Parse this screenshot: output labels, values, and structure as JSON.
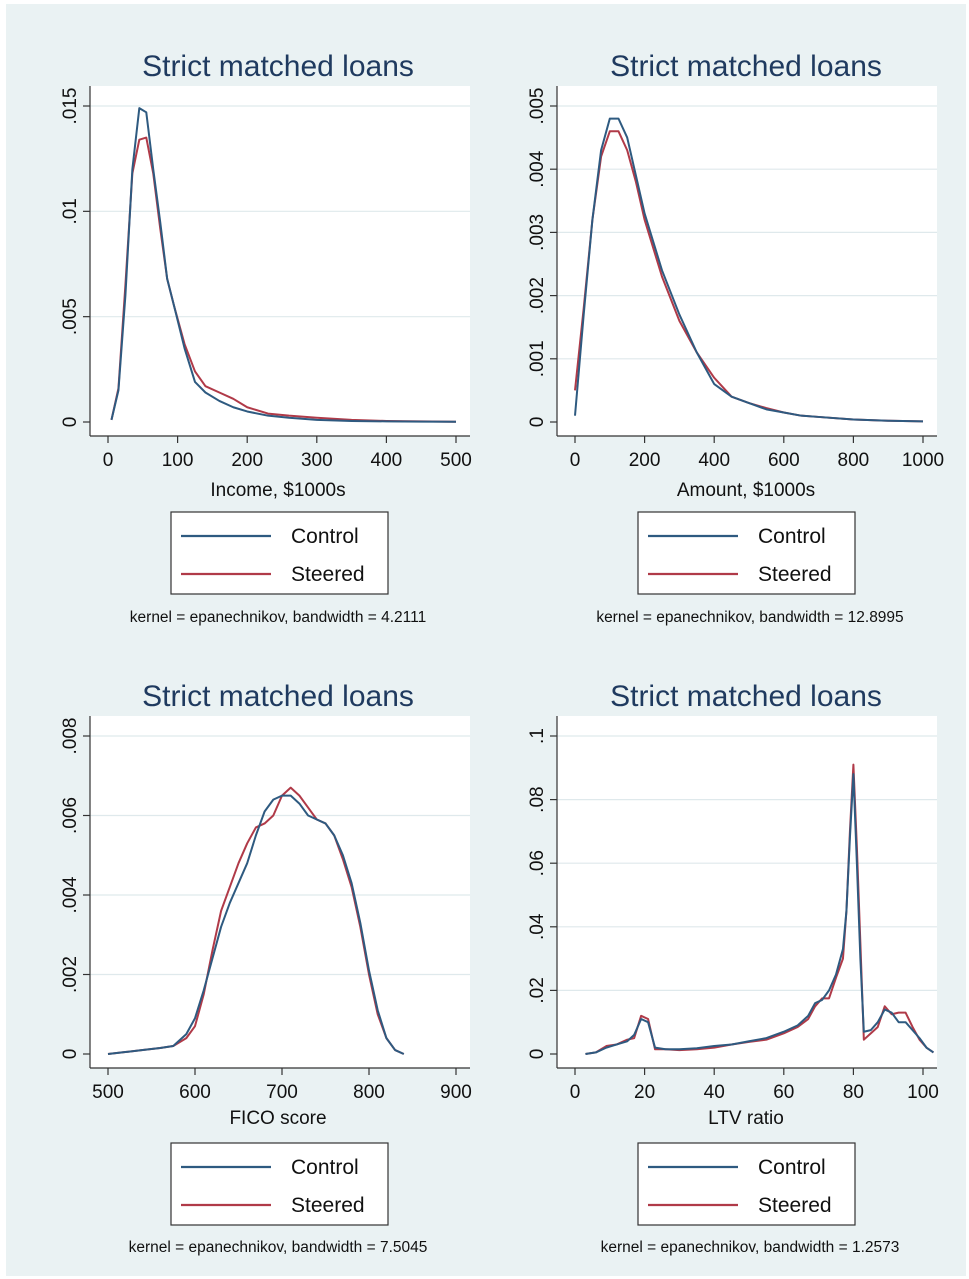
{
  "colors": {
    "page_background": "#ffffff",
    "figure_background": "#eaf2f3",
    "plot_background": "#ffffff",
    "gridline": "#dfe9ec",
    "title": "#1f3a5f",
    "control": "#2e5a80",
    "steered": "#b03a48",
    "text": "#111111"
  },
  "chart_data": [
    {
      "type": "line",
      "title": "Strict matched loans",
      "xlabel": "Income, $1000s",
      "ylabel": "",
      "xlim": [
        0,
        500
      ],
      "ylim": [
        0,
        0.015
      ],
      "xticks": [
        0,
        100,
        200,
        300,
        400,
        500
      ],
      "xtick_labels": [
        "0",
        "100",
        "200",
        "300",
        "400",
        "500"
      ],
      "yticks": [
        0,
        0.005,
        0.01,
        0.015
      ],
      "ytick_labels": [
        "0",
        ".005",
        ".01",
        ".015"
      ],
      "grid": true,
      "legend": [
        "Control",
        "Steered"
      ],
      "legend_position": "bottom",
      "note": "kernel = epanechnikov, bandwidth = 4.2111",
      "series": [
        {
          "name": "Control",
          "color": "#2e5a80",
          "x": [
            5,
            15,
            25,
            35,
            45,
            55,
            65,
            75,
            85,
            95,
            110,
            125,
            140,
            160,
            180,
            200,
            230,
            260,
            300,
            350,
            400,
            450,
            500
          ],
          "y": [
            0.0001,
            0.0015,
            0.006,
            0.012,
            0.0149,
            0.0147,
            0.012,
            0.0095,
            0.0068,
            0.0055,
            0.0035,
            0.0019,
            0.0014,
            0.001,
            0.0007,
            0.0005,
            0.0003,
            0.0002,
            0.0001,
            5e-05,
            3e-05,
            2e-05,
            1e-05
          ]
        },
        {
          "name": "Steered",
          "color": "#b03a48",
          "x": [
            5,
            15,
            25,
            35,
            45,
            55,
            65,
            75,
            85,
            95,
            110,
            125,
            140,
            160,
            180,
            200,
            230,
            260,
            300,
            350,
            400,
            450,
            500
          ],
          "y": [
            0.0001,
            0.0016,
            0.0065,
            0.0118,
            0.0134,
            0.0135,
            0.0118,
            0.0092,
            0.0068,
            0.0055,
            0.0037,
            0.0024,
            0.0017,
            0.0014,
            0.0011,
            0.0007,
            0.0004,
            0.0003,
            0.0002,
            0.0001,
            5e-05,
            3e-05,
            1e-05
          ]
        }
      ]
    },
    {
      "type": "line",
      "title": "Strict matched loans",
      "xlabel": "Amount, $1000s",
      "ylabel": "",
      "xlim": [
        0,
        1000
      ],
      "ylim": [
        0,
        0.005
      ],
      "xticks": [
        0,
        200,
        400,
        600,
        800,
        1000
      ],
      "xtick_labels": [
        "0",
        "200",
        "400",
        "600",
        "800",
        "1000"
      ],
      "yticks": [
        0,
        0.001,
        0.002,
        0.003,
        0.004,
        0.005
      ],
      "ytick_labels": [
        "0",
        ".001",
        ".002",
        ".003",
        ".004",
        ".005"
      ],
      "grid": true,
      "legend": [
        "Control",
        "Steered"
      ],
      "legend_position": "bottom",
      "note": "kernel = epanechnikov, bandwidth = 12.8995",
      "series": [
        {
          "name": "Control",
          "color": "#2e5a80",
          "x": [
            0,
            25,
            50,
            75,
            100,
            125,
            150,
            175,
            200,
            250,
            300,
            350,
            400,
            450,
            500,
            550,
            600,
            650,
            700,
            800,
            900,
            1000
          ],
          "y": [
            0.0001,
            0.0017,
            0.0032,
            0.0043,
            0.0048,
            0.0048,
            0.0045,
            0.0039,
            0.0033,
            0.0024,
            0.0017,
            0.0011,
            0.0006,
            0.0004,
            0.0003,
            0.0002,
            0.00015,
            0.0001,
            8e-05,
            4e-05,
            2e-05,
            1e-05
          ]
        },
        {
          "name": "Steered",
          "color": "#b03a48",
          "x": [
            0,
            25,
            50,
            75,
            100,
            125,
            150,
            175,
            200,
            250,
            300,
            350,
            400,
            450,
            500,
            550,
            600,
            650,
            700,
            800,
            900,
            1000
          ],
          "y": [
            0.0005,
            0.0018,
            0.0032,
            0.0042,
            0.0046,
            0.0046,
            0.0043,
            0.0038,
            0.0032,
            0.0023,
            0.0016,
            0.0011,
            0.0007,
            0.0004,
            0.0003,
            0.00022,
            0.00015,
            0.0001,
            8e-05,
            4e-05,
            2e-05,
            1e-05
          ]
        }
      ]
    },
    {
      "type": "line",
      "title": "Strict matched loans",
      "xlabel": "FICO score",
      "ylabel": "",
      "xlim": [
        500,
        900
      ],
      "ylim": [
        0,
        0.008
      ],
      "xticks": [
        500,
        600,
        700,
        800,
        900
      ],
      "xtick_labels": [
        "500",
        "600",
        "700",
        "800",
        "900"
      ],
      "yticks": [
        0,
        0.002,
        0.004,
        0.006,
        0.008
      ],
      "ytick_labels": [
        "0",
        ".002",
        ".004",
        ".006",
        ".008"
      ],
      "grid": true,
      "legend": [
        "Control",
        "Steered"
      ],
      "legend_position": "bottom",
      "note": "kernel = epanechnikov, bandwidth = 7.5045",
      "series": [
        {
          "name": "Control",
          "color": "#2e5a80",
          "x": [
            500,
            520,
            540,
            560,
            575,
            590,
            600,
            610,
            620,
            630,
            640,
            650,
            660,
            670,
            680,
            690,
            700,
            710,
            720,
            730,
            740,
            750,
            760,
            770,
            780,
            790,
            800,
            810,
            820,
            830,
            840
          ],
          "y": [
            0,
            5e-05,
            0.0001,
            0.00015,
            0.0002,
            0.0005,
            0.0009,
            0.0016,
            0.0024,
            0.0032,
            0.0038,
            0.0043,
            0.0048,
            0.0055,
            0.0061,
            0.0064,
            0.0065,
            0.0065,
            0.0063,
            0.006,
            0.0059,
            0.0058,
            0.0055,
            0.005,
            0.0043,
            0.0033,
            0.0021,
            0.0011,
            0.0004,
            0.0001,
            0
          ]
        },
        {
          "name": "Steered",
          "color": "#b03a48",
          "x": [
            500,
            520,
            540,
            560,
            575,
            590,
            600,
            610,
            620,
            630,
            640,
            650,
            660,
            670,
            680,
            690,
            700,
            710,
            720,
            730,
            740,
            750,
            760,
            770,
            780,
            790,
            800,
            810,
            820,
            830,
            840
          ],
          "y": [
            0,
            5e-05,
            0.0001,
            0.00015,
            0.0002,
            0.0004,
            0.0007,
            0.0015,
            0.0026,
            0.0036,
            0.0042,
            0.0048,
            0.0053,
            0.0057,
            0.0058,
            0.006,
            0.0065,
            0.0067,
            0.0065,
            0.0062,
            0.0059,
            0.0058,
            0.0055,
            0.0049,
            0.0042,
            0.0032,
            0.002,
            0.001,
            0.0004,
            0.0001,
            0
          ]
        }
      ]
    },
    {
      "type": "line",
      "title": "Strict matched loans",
      "xlabel": "LTV ratio",
      "ylabel": "",
      "xlim": [
        0,
        100
      ],
      "ylim": [
        0,
        0.1
      ],
      "xticks": [
        0,
        20,
        40,
        60,
        80,
        100
      ],
      "xtick_labels": [
        "0",
        "20",
        "40",
        "60",
        "80",
        "100"
      ],
      "yticks": [
        0,
        0.02,
        0.04,
        0.06,
        0.08,
        0.1
      ],
      "ytick_labels": [
        "0",
        ".02",
        ".04",
        ".06",
        ".08",
        ".1"
      ],
      "grid": true,
      "legend": [
        "Control",
        "Steered"
      ],
      "legend_position": "bottom",
      "note": "kernel = epanechnikov, bandwidth = 1.2573",
      "series": [
        {
          "name": "Control",
          "color": "#2e5a80",
          "x": [
            3,
            6,
            9,
            12,
            15,
            17,
            19,
            21,
            23,
            26,
            30,
            35,
            40,
            45,
            50,
            55,
            60,
            64,
            67,
            69,
            71,
            73,
            75,
            77,
            78,
            79,
            80,
            81,
            82,
            83,
            85,
            87,
            89,
            91,
            93,
            95,
            97,
            99,
            101,
            103
          ],
          "y": [
            0,
            0.0005,
            0.002,
            0.003,
            0.004,
            0.006,
            0.011,
            0.01,
            0.002,
            0.0015,
            0.0015,
            0.0018,
            0.0025,
            0.003,
            0.004,
            0.005,
            0.007,
            0.009,
            0.012,
            0.016,
            0.017,
            0.02,
            0.025,
            0.033,
            0.045,
            0.068,
            0.088,
            0.06,
            0.03,
            0.007,
            0.0075,
            0.01,
            0.014,
            0.013,
            0.01,
            0.01,
            0.0075,
            0.005,
            0.002,
            0.0005
          ]
        },
        {
          "name": "Steered",
          "color": "#b03a48",
          "x": [
            3,
            6,
            9,
            12,
            15,
            17,
            19,
            21,
            23,
            26,
            30,
            35,
            40,
            45,
            50,
            55,
            60,
            64,
            67,
            69,
            71,
            73,
            75,
            77,
            78,
            79,
            80,
            81,
            82,
            83,
            85,
            87,
            89,
            91,
            93,
            95,
            97,
            99,
            101,
            103
          ],
          "y": [
            0,
            0.0005,
            0.0025,
            0.003,
            0.0045,
            0.005,
            0.012,
            0.011,
            0.0015,
            0.0015,
            0.0012,
            0.0015,
            0.002,
            0.003,
            0.0038,
            0.0045,
            0.0065,
            0.0085,
            0.011,
            0.015,
            0.0175,
            0.0175,
            0.024,
            0.03,
            0.045,
            0.07,
            0.091,
            0.065,
            0.035,
            0.0045,
            0.0065,
            0.0085,
            0.015,
            0.0125,
            0.013,
            0.013,
            0.0085,
            0.0045,
            0.002,
            0.0005
          ]
        }
      ]
    }
  ]
}
